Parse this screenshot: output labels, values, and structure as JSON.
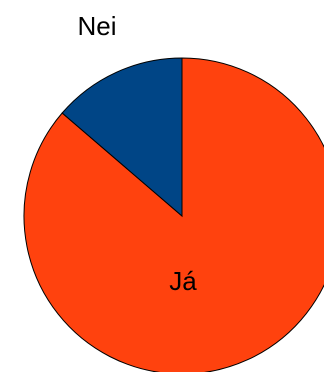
{
  "chart_data": {
    "type": "pie",
    "labels": [
      "Já",
      "Nei"
    ],
    "values": [
      86.3,
      13.7
    ],
    "colors": [
      "#ff420e",
      "#004586"
    ],
    "start_angle_deg": 0,
    "direction": "clockwise",
    "legend": "none"
  }
}
